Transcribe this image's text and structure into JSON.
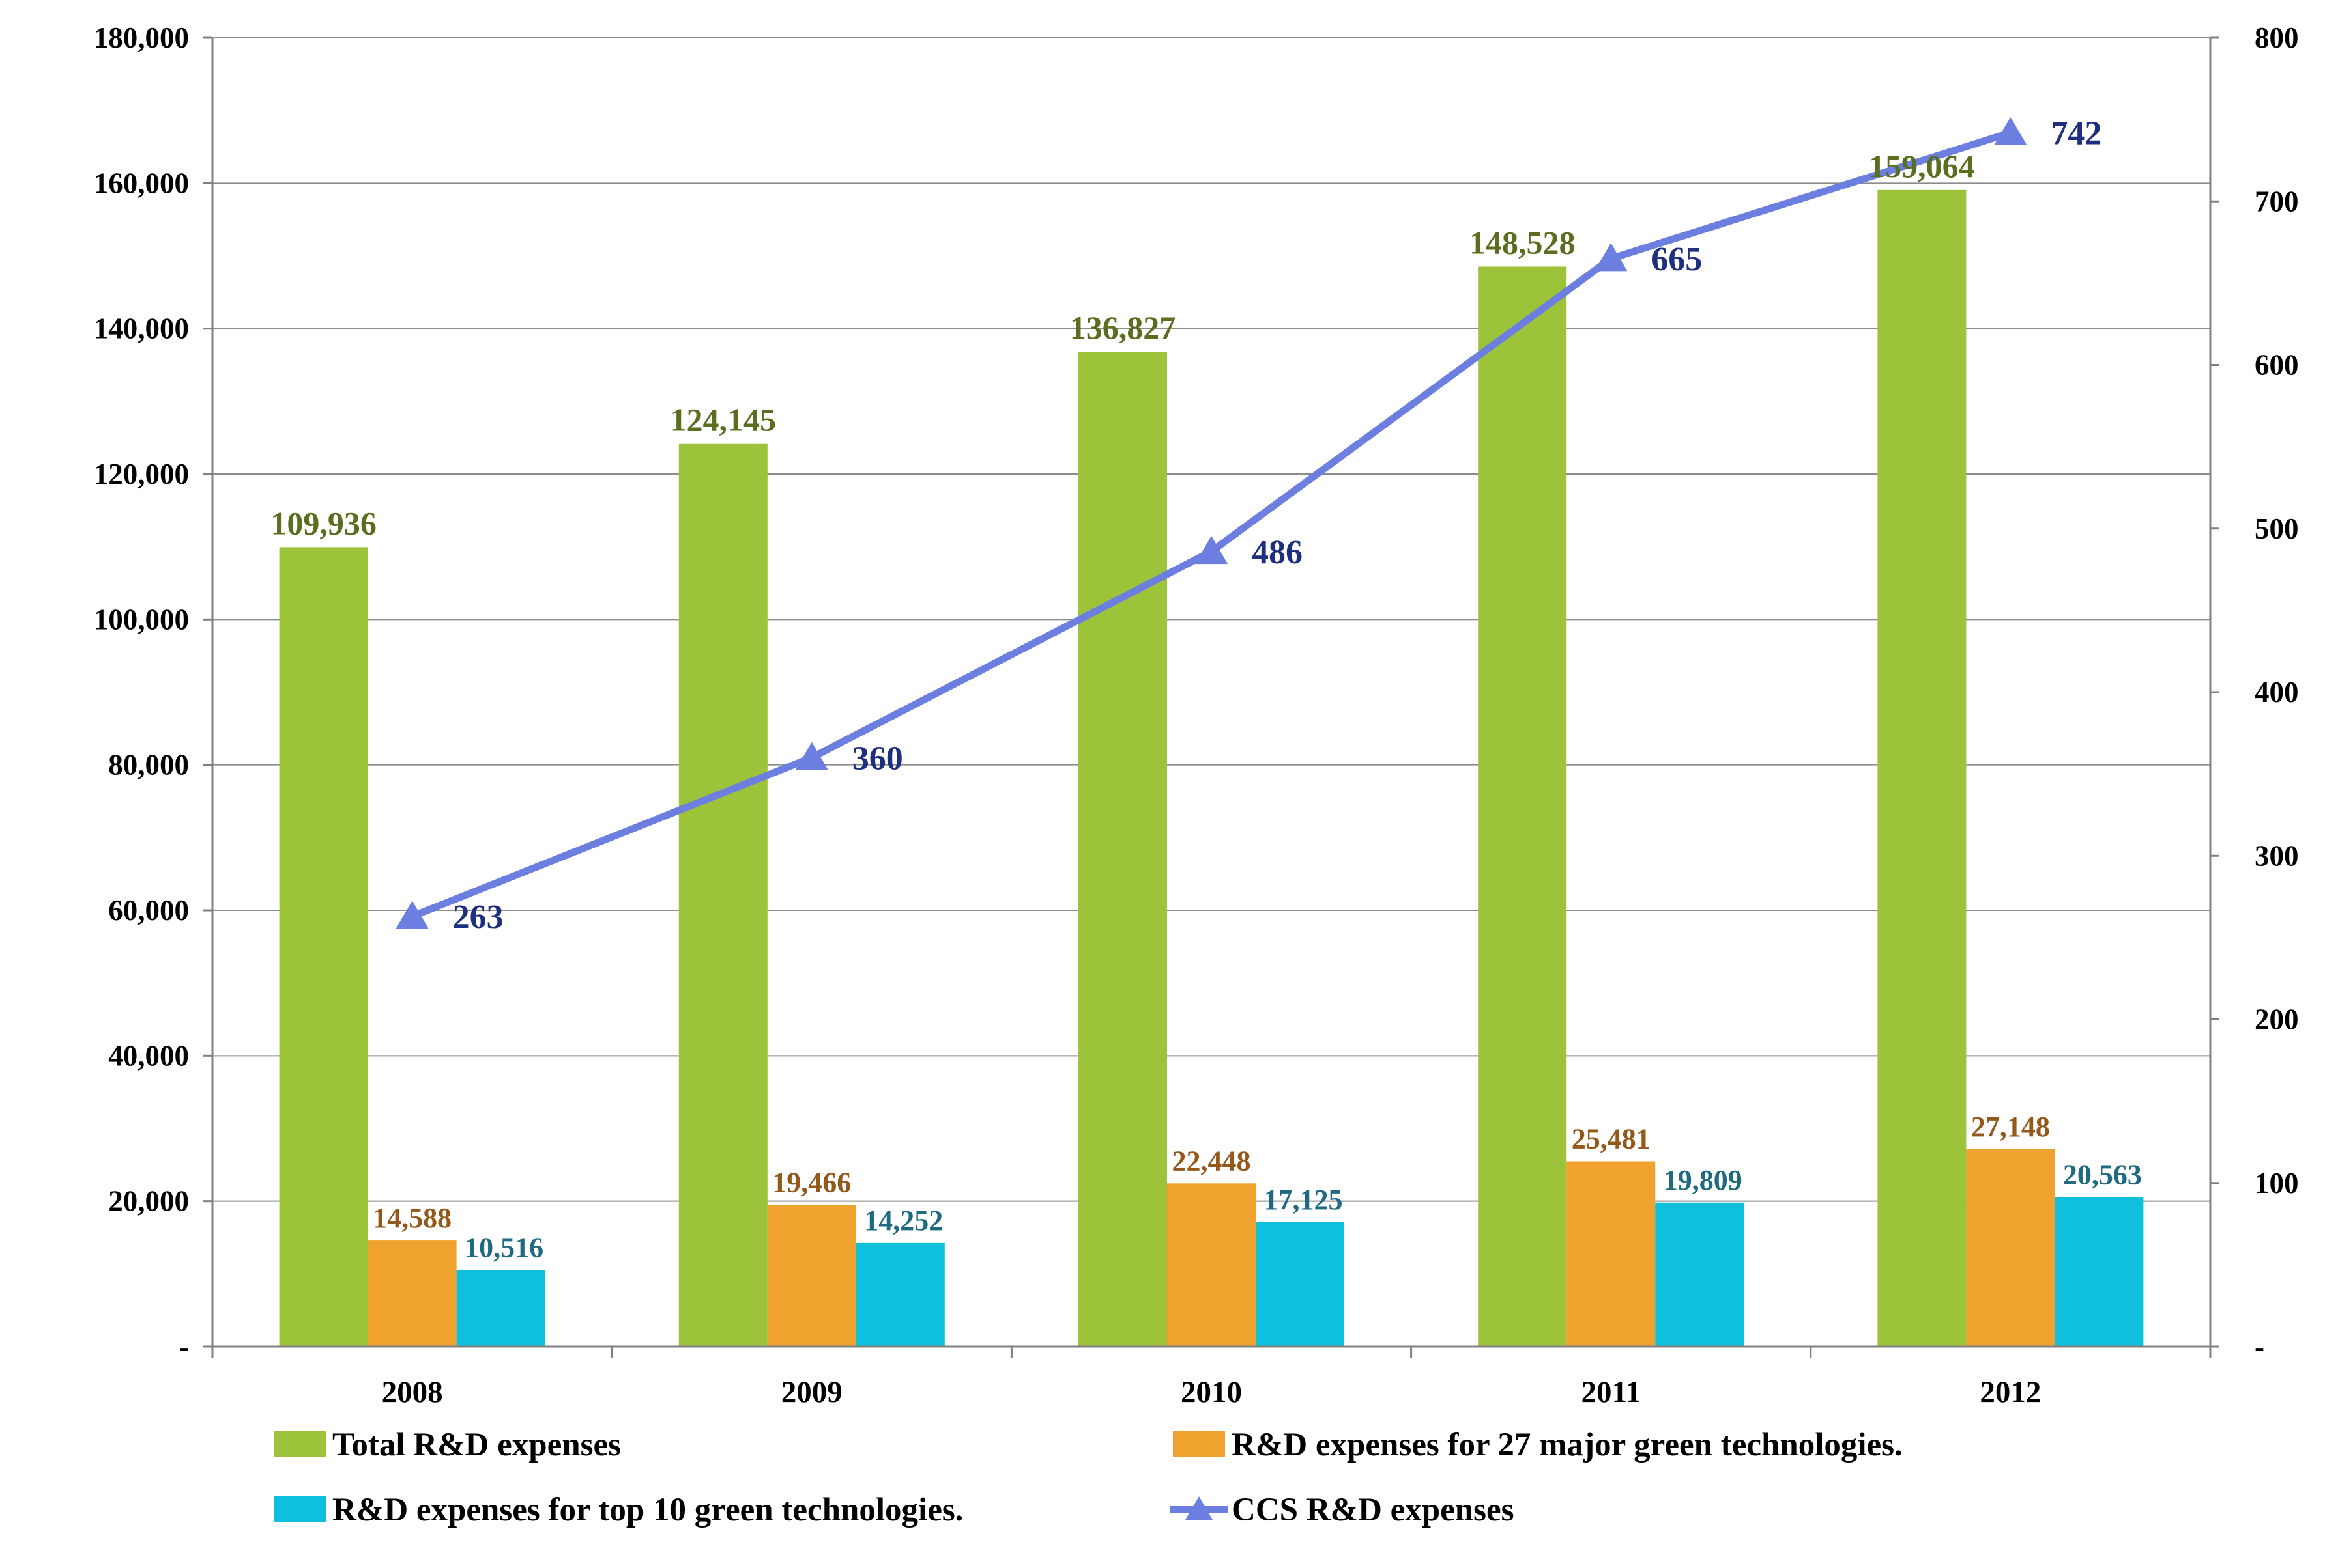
{
  "chart_data": {
    "type": "bar",
    "categories": [
      "2008",
      "2009",
      "2010",
      "2011",
      "2012"
    ],
    "series": [
      {
        "name": "Total R&D expenses",
        "axis": "left",
        "color": "#9dc33b",
        "values": [
          109936,
          124145,
          136827,
          148528,
          159064
        ],
        "labels": [
          "109,936",
          "124,145",
          "136,827",
          "148,528",
          "159,064"
        ]
      },
      {
        "name": "R&D expenses for 27 major green technologies.",
        "axis": "left",
        "color": "#f0a22e",
        "values": [
          14588,
          19466,
          22448,
          25481,
          27148
        ],
        "labels": [
          "14,588",
          "19,466",
          "22,448",
          "25,481",
          "27,148"
        ]
      },
      {
        "name": "R&D expenses for top 10 green technologies.",
        "axis": "left",
        "color": "#0ec0dc",
        "values": [
          10516,
          14252,
          17125,
          19809,
          20563
        ],
        "labels": [
          "10,516",
          "14,252",
          "17,125",
          "19,809",
          "20,563"
        ]
      },
      {
        "name": "CCS R&D expenses",
        "axis": "right",
        "type": "line",
        "color": "#6c7fe0",
        "values": [
          263,
          360,
          486,
          665,
          742
        ],
        "labels": [
          "263",
          "360",
          "486",
          "665",
          "742"
        ]
      }
    ],
    "y_left": {
      "min": 0,
      "max": 180000,
      "ticks": [
        0,
        20000,
        40000,
        60000,
        80000,
        100000,
        120000,
        140000,
        160000,
        180000
      ],
      "tick_labels": [
        "-",
        "20,000",
        "40,000",
        "60,000",
        "80,000",
        "100,000",
        "120,000",
        "140,000",
        "160,000",
        "180,000"
      ]
    },
    "y_right": {
      "min": 0,
      "max": 800,
      "ticks": [
        0,
        100,
        200,
        300,
        400,
        500,
        600,
        700,
        800
      ],
      "tick_labels": [
        "-",
        "100",
        "200",
        "300",
        "400",
        "500",
        "600",
        "700",
        "800"
      ]
    },
    "grid": true,
    "legend": "bottom",
    "title": "",
    "xlabel": "",
    "ylabel": ""
  }
}
